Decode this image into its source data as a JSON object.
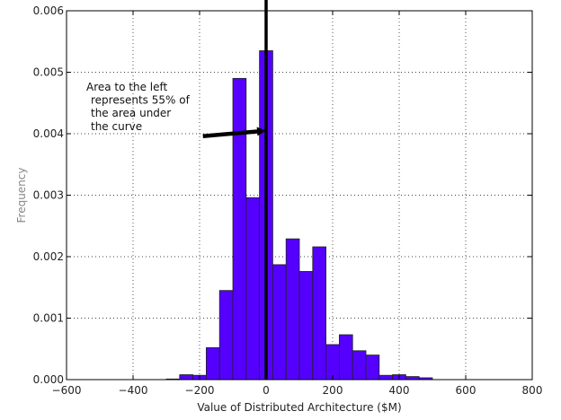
{
  "chart_data": {
    "type": "bar",
    "title": "",
    "xlabel": "Value of Distributed Architecture ($M)",
    "ylabel": "Frequency",
    "xlim": [
      -600,
      800
    ],
    "ylim": [
      0,
      0.006
    ],
    "x_ticks": [
      -600,
      -400,
      -200,
      0,
      200,
      400,
      600,
      800
    ],
    "x_tick_labels": [
      "−600",
      "−400",
      "−200",
      "0",
      "200",
      "400",
      "600",
      "800"
    ],
    "y_ticks": [
      0.0,
      0.001,
      0.002,
      0.003,
      0.004,
      0.005,
      0.006
    ],
    "y_tick_labels": [
      "0.000",
      "0.001",
      "0.002",
      "0.003",
      "0.004",
      "0.005",
      "0.006"
    ],
    "grid": true,
    "bar_color": "#5500ff",
    "bar_edge_color": "#222222",
    "bins": [
      {
        "x0": -300,
        "x1": -260,
        "value": 1e-05
      },
      {
        "x0": -260,
        "x1": -220,
        "value": 8e-05
      },
      {
        "x0": -220,
        "x1": -180,
        "value": 7e-05
      },
      {
        "x0": -180,
        "x1": -140,
        "value": 0.00052
      },
      {
        "x0": -140,
        "x1": -100,
        "value": 0.00145
      },
      {
        "x0": -100,
        "x1": -60,
        "value": 0.0049
      },
      {
        "x0": -60,
        "x1": -20,
        "value": 0.00296
      },
      {
        "x0": -20,
        "x1": 20,
        "value": 0.00535
      },
      {
        "x0": 20,
        "x1": 60,
        "value": 0.00187
      },
      {
        "x0": 60,
        "x1": 100,
        "value": 0.00229
      },
      {
        "x0": 100,
        "x1": 140,
        "value": 0.00176
      },
      {
        "x0": 140,
        "x1": 180,
        "value": 0.00216
      },
      {
        "x0": 180,
        "x1": 220,
        "value": 0.00057
      },
      {
        "x0": 220,
        "x1": 260,
        "value": 0.00073
      },
      {
        "x0": 260,
        "x1": 300,
        "value": 0.00047
      },
      {
        "x0": 300,
        "x1": 340,
        "value": 0.0004
      },
      {
        "x0": 340,
        "x1": 380,
        "value": 7e-05
      },
      {
        "x0": 380,
        "x1": 420,
        "value": 8e-05
      },
      {
        "x0": 420,
        "x1": 460,
        "value": 5e-05
      },
      {
        "x0": 460,
        "x1": 500,
        "value": 3e-05
      }
    ],
    "vertical_line": {
      "x": 0,
      "color": "#000000"
    },
    "annotation": {
      "lines": [
        "Area to the left",
        "represents 55% of",
        "the area under",
        "the curve"
      ],
      "arrow_from": {
        "x": -190,
        "y": 0.00396
      },
      "arrow_to": {
        "x": 0,
        "y": 0.00405
      }
    }
  }
}
